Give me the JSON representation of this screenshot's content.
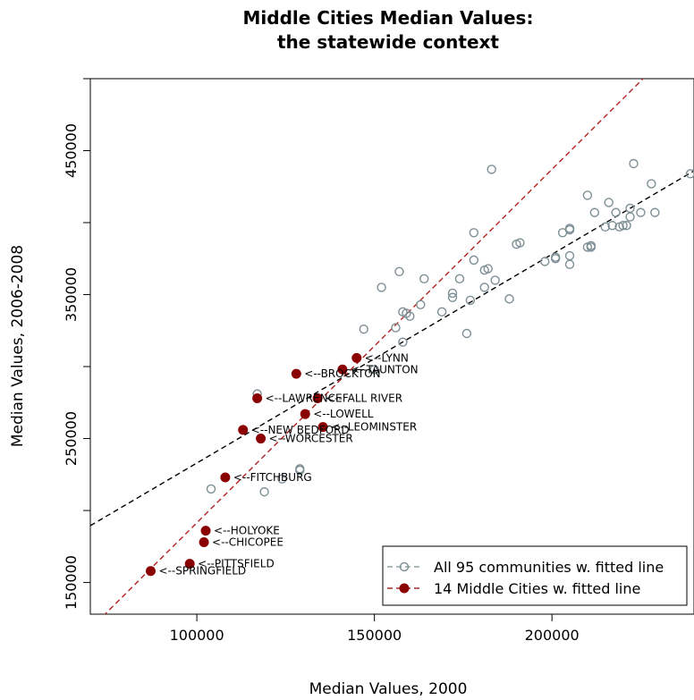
{
  "chart_data": {
    "type": "scatter",
    "title_lines": [
      "Middle Cities Median Values:",
      "the statewide context"
    ],
    "xlabel": "Median Values, 2000",
    "ylabel": "Median Values, 2006-2008",
    "xlim": [
      70000,
      240000
    ],
    "ylim": [
      128000,
      500000
    ],
    "x_ticks": [
      100000,
      150000,
      200000
    ],
    "y_ticks": [
      150000,
      250000,
      350000,
      450000
    ],
    "legend": {
      "placement": "bottom-right",
      "entries": [
        {
          "label": "All 95 communities w. fitted line",
          "color": "#7d8f95",
          "marker": "open-circle",
          "line": "dashed"
        },
        {
          "label": "14 Middle Cities w. fitted line",
          "color": "#8b0000",
          "marker": "filled-circle",
          "line": "dashed"
        }
      ]
    },
    "series": [
      {
        "name": "All 95 communities w. fitted line",
        "color": "#7d8f95",
        "fit": {
          "slope": 1.45,
          "intercept": 88000,
          "color": "#000000"
        },
        "points": [
          [
            104000,
            215000
          ],
          [
            117000,
            281000
          ],
          [
            119000,
            213000
          ],
          [
            124000,
            222000
          ],
          [
            129000,
            228000
          ],
          [
            129000,
            229000
          ],
          [
            147000,
            326000
          ],
          [
            150000,
            298000
          ],
          [
            152000,
            355000
          ],
          [
            156000,
            327000
          ],
          [
            157000,
            366000
          ],
          [
            158000,
            317000
          ],
          [
            159000,
            337000
          ],
          [
            160000,
            335000
          ],
          [
            163000,
            343000
          ],
          [
            164000,
            361000
          ],
          [
            169000,
            338000
          ],
          [
            172000,
            348000
          ],
          [
            172000,
            351000
          ],
          [
            174000,
            361000
          ],
          [
            176000,
            323000
          ],
          [
            177000,
            346000
          ],
          [
            178000,
            393000
          ],
          [
            178000,
            374000
          ],
          [
            181000,
            355000
          ],
          [
            181000,
            367000
          ],
          [
            183000,
            437000
          ],
          [
            184000,
            360000
          ],
          [
            188000,
            347000
          ],
          [
            190000,
            385000
          ],
          [
            191000,
            386000
          ],
          [
            198000,
            373000
          ],
          [
            201000,
            375000
          ],
          [
            201000,
            376000
          ],
          [
            203000,
            393000
          ],
          [
            205000,
            396000
          ],
          [
            205000,
            371000
          ],
          [
            205000,
            377000
          ],
          [
            210000,
            383000
          ],
          [
            210000,
            419000
          ],
          [
            211000,
            384000
          ],
          [
            212000,
            407000
          ],
          [
            215000,
            397000
          ],
          [
            216000,
            414000
          ],
          [
            217000,
            398000
          ],
          [
            218000,
            407000
          ],
          [
            219000,
            397000
          ],
          [
            221000,
            398000
          ],
          [
            222000,
            404000
          ],
          [
            222000,
            410000
          ],
          [
            223000,
            441000
          ],
          [
            225000,
            407000
          ],
          [
            228000,
            427000
          ],
          [
            229000,
            407000
          ],
          [
            239000,
            434000
          ],
          [
            205000,
            395000
          ],
          [
            211000,
            383000
          ],
          [
            220000,
            398000
          ],
          [
            182000,
            368000
          ],
          [
            158000,
            338000
          ]
        ]
      },
      {
        "name": "14 Middle Cities w. fitted line",
        "color": "#8b0000",
        "fit": {
          "slope": 2.455,
          "intercept": -54000,
          "color": "#b22222"
        },
        "points": [
          {
            "x": 87000,
            "y": 158000,
            "label": "<--SPRINGFIELD"
          },
          {
            "x": 98000,
            "y": 163000,
            "label": "<--PITTSFIELD"
          },
          {
            "x": 102000,
            "y": 178000,
            "label": "<--CHICOPEE"
          },
          {
            "x": 102500,
            "y": 186000,
            "label": "<--HOLYOKE"
          },
          {
            "x": 108000,
            "y": 223000,
            "label": "<--FITCHBURG"
          },
          {
            "x": 113000,
            "y": 256000,
            "label": "<--NEW BEDFORD"
          },
          {
            "x": 118000,
            "y": 250000,
            "label": "<--WORCESTER"
          },
          {
            "x": 117000,
            "y": 278000,
            "label": "<--LAWRENCE"
          },
          {
            "x": 128000,
            "y": 295000,
            "label": "<--BROCKTON"
          },
          {
            "x": 130500,
            "y": 267000,
            "label": "<--LOWELL"
          },
          {
            "x": 134000,
            "y": 278000,
            "label": "<--FALL RIVER"
          },
          {
            "x": 135500,
            "y": 258000,
            "label": "<--LEOMINSTER"
          },
          {
            "x": 141000,
            "y": 298000,
            "label": "<--TAUNTON"
          },
          {
            "x": 145000,
            "y": 306000,
            "label": "<--LYNN"
          }
        ]
      }
    ]
  }
}
